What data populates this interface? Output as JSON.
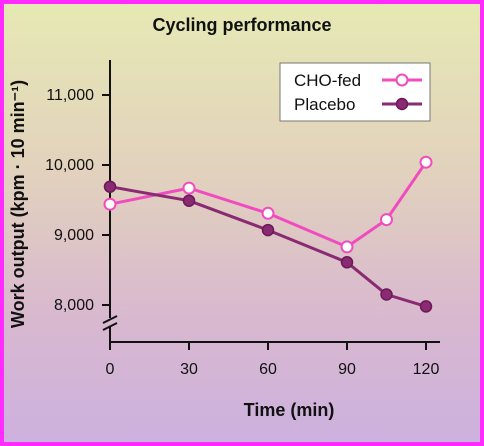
{
  "chart_data": {
    "type": "line",
    "title": "Cycling performance",
    "xlabel": "Time (min)",
    "ylabel": "Work output (kpm · 10 min⁻¹)",
    "x_ticks": [
      "0",
      "30",
      "60",
      "90",
      "120"
    ],
    "y_ticks": [
      "8,000",
      "9,000",
      "10,000",
      "11,000"
    ],
    "xlim": [
      0,
      130
    ],
    "ylim": [
      7800,
      11500
    ],
    "axis_break": true,
    "grid": false,
    "legend_position": "top-right",
    "series": [
      {
        "name": "CHO-fed",
        "color": "#f04cc0",
        "marker": "open-circle",
        "x": [
          0,
          30,
          60,
          90,
          105,
          120
        ],
        "y": [
          9440,
          9670,
          9310,
          8830,
          9220,
          10040
        ]
      },
      {
        "name": "Placebo",
        "color": "#8a2a72",
        "marker": "filled-circle",
        "x": [
          0,
          30,
          60,
          90,
          105,
          120
        ],
        "y": [
          9690,
          9490,
          9070,
          8610,
          8150,
          7980
        ]
      }
    ]
  }
}
